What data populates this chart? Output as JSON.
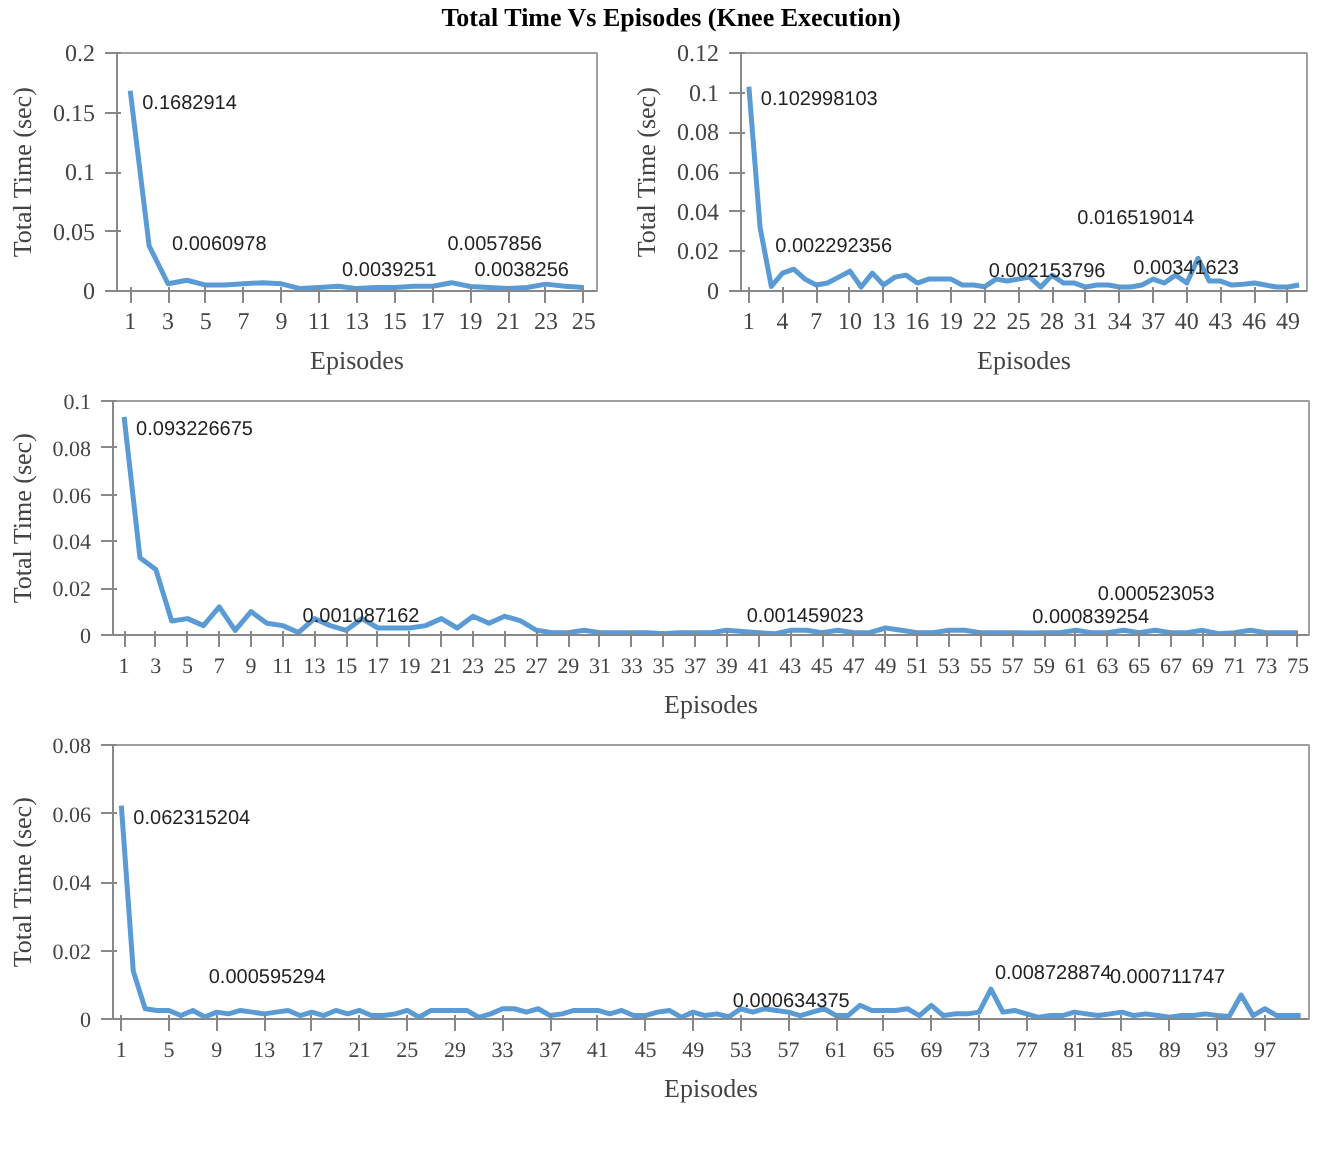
{
  "chart_data": [
    {
      "type": "line",
      "title": "Total Time Vs Episodes (Knee Execution)",
      "xlabel": "Episodes",
      "ylabel": "Total Time (sec)",
      "color": "#5b9bd5",
      "grid": false,
      "x": [
        1,
        2,
        3,
        4,
        5,
        6,
        7,
        8,
        9,
        10,
        11,
        12,
        13,
        14,
        15,
        16,
        17,
        18,
        19,
        20,
        21,
        22,
        23,
        24,
        25
      ],
      "values": [
        0.1682914,
        0.038,
        0.0060978,
        0.009,
        0.005,
        0.005,
        0.006,
        0.007,
        0.006,
        0.002,
        0.003,
        0.0039251,
        0.002,
        0.003,
        0.003,
        0.004,
        0.004,
        0.007,
        0.0038256,
        0.003,
        0.002,
        0.003,
        0.0057856,
        0.004,
        0.003
      ],
      "value_labels": [
        "0.1682914",
        null,
        "0.0060978",
        null,
        null,
        null,
        null,
        null,
        null,
        null,
        null,
        "0.0039251",
        null,
        null,
        null,
        null,
        null,
        null,
        "0.0038256",
        null,
        null,
        null,
        "0.0057856",
        null,
        null
      ],
      "xlim": [
        0.3,
        25.7
      ],
      "xticks": [
        1,
        3,
        5,
        7,
        9,
        11,
        13,
        15,
        17,
        19,
        21,
        23,
        25
      ],
      "ylim": [
        0,
        0.2
      ],
      "yticks": [
        0,
        0.05,
        0.1,
        0.15,
        0.2
      ]
    },
    {
      "type": "line",
      "xlabel": "Episodes",
      "ylabel": "Total Time (sec)",
      "color": "#5b9bd5",
      "grid": false,
      "x": [
        1,
        2,
        3,
        4,
        5,
        6,
        7,
        8,
        9,
        10,
        11,
        12,
        13,
        14,
        15,
        16,
        17,
        18,
        19,
        20,
        21,
        22,
        23,
        24,
        25,
        26,
        27,
        28,
        29,
        30,
        31,
        32,
        33,
        34,
        35,
        36,
        37,
        38,
        39,
        40,
        41,
        42,
        43,
        44,
        45,
        46,
        47,
        48,
        49,
        50
      ],
      "values": [
        0.102998103,
        0.032,
        0.002292356,
        0.009,
        0.011,
        0.006,
        0.003,
        0.004,
        0.007,
        0.01,
        0.002,
        0.009,
        0.003,
        0.007,
        0.008,
        0.004,
        0.006,
        0.006,
        0.006,
        0.003,
        0.003,
        0.002153796,
        0.006,
        0.005,
        0.006,
        0.007,
        0.002,
        0.008,
        0.004,
        0.004,
        0.002,
        0.003,
        0.003,
        0.002,
        0.002,
        0.003,
        0.006,
        0.004,
        0.008,
        0.004,
        0.016519014,
        0.005,
        0.005,
        0.003,
        0.00341623,
        0.004,
        0.003,
        0.002,
        0.002,
        0.003
      ],
      "value_labels": [
        "0.102998103",
        null,
        "0.002292356",
        null,
        null,
        null,
        null,
        null,
        null,
        null,
        null,
        null,
        null,
        null,
        null,
        null,
        null,
        null,
        null,
        null,
        null,
        "0.002153796",
        null,
        null,
        null,
        null,
        null,
        null,
        null,
        null,
        null,
        null,
        null,
        null,
        null,
        null,
        null,
        null,
        null,
        null,
        "0.016519014",
        null,
        null,
        null,
        "0.00341623",
        null,
        null,
        null,
        null,
        null
      ],
      "xlim": [
        0.3,
        50.7
      ],
      "xticks": [
        1,
        4,
        7,
        10,
        13,
        16,
        19,
        22,
        25,
        28,
        31,
        34,
        37,
        40,
        43,
        46,
        49
      ],
      "ylim": [
        0,
        0.12
      ],
      "yticks": [
        0,
        0.02,
        0.04,
        0.06,
        0.08,
        0.1,
        0.12
      ]
    },
    {
      "type": "line",
      "xlabel": "Episodes",
      "ylabel": "Total Time (sec)",
      "color": "#5b9bd5",
      "grid": false,
      "x": [
        1,
        2,
        3,
        4,
        5,
        6,
        7,
        8,
        9,
        10,
        11,
        12,
        13,
        14,
        15,
        16,
        17,
        18,
        19,
        20,
        21,
        22,
        23,
        24,
        25,
        26,
        27,
        28,
        29,
        30,
        31,
        32,
        33,
        34,
        35,
        36,
        37,
        38,
        39,
        40,
        41,
        42,
        43,
        44,
        45,
        46,
        47,
        48,
        49,
        50,
        51,
        52,
        53,
        54,
        55,
        56,
        57,
        58,
        59,
        60,
        61,
        62,
        63,
        64,
        65,
        66,
        67,
        68,
        69,
        70,
        71,
        72,
        73,
        74,
        75
      ],
      "values": [
        0.093226675,
        0.033,
        0.028,
        0.006,
        0.007,
        0.004,
        0.012,
        0.002,
        0.01,
        0.005,
        0.004,
        0.001087162,
        0.007,
        0.004,
        0.002,
        0.007,
        0.003,
        0.003,
        0.003,
        0.004,
        0.007,
        0.003,
        0.008,
        0.005,
        0.008,
        0.006,
        0.002,
        0.001,
        0.001,
        0.002,
        0.001,
        0.001,
        0.001,
        0.001,
        0.0005,
        0.001,
        0.001,
        0.001,
        0.002,
        0.001459023,
        0.001,
        0.0005,
        0.002,
        0.002,
        0.001,
        0.002,
        0.001,
        0.001,
        0.003,
        0.002,
        0.001,
        0.001,
        0.002,
        0.002,
        0.001,
        0.001,
        0.001,
        0.000839254,
        0.001,
        0.001,
        0.002,
        0.001,
        0.001,
        0.002,
        0.001,
        0.002,
        0.001,
        0.001,
        0.002,
        0.000523053,
        0.001,
        0.002,
        0.001,
        0.001,
        0.001
      ],
      "value_labels": [
        "0.093226675",
        null,
        null,
        null,
        null,
        null,
        null,
        null,
        null,
        null,
        null,
        "0.001087162",
        null,
        null,
        null,
        null,
        null,
        null,
        null,
        null,
        null,
        null,
        null,
        null,
        null,
        null,
        null,
        null,
        null,
        null,
        null,
        null,
        null,
        null,
        null,
        null,
        null,
        null,
        null,
        "0.001459023",
        null,
        null,
        null,
        null,
        null,
        null,
        null,
        null,
        null,
        null,
        null,
        null,
        null,
        null,
        null,
        null,
        null,
        "0.000839254",
        null,
        null,
        null,
        null,
        null,
        null,
        null,
        null,
        null,
        null,
        null,
        "0.000523053",
        null,
        null,
        null,
        null,
        null
      ],
      "xlim": [
        0.3,
        75.7
      ],
      "xticks": [
        1,
        3,
        5,
        7,
        9,
        11,
        13,
        15,
        17,
        19,
        21,
        23,
        25,
        27,
        29,
        31,
        33,
        35,
        37,
        39,
        41,
        43,
        45,
        47,
        49,
        51,
        53,
        55,
        57,
        59,
        61,
        63,
        65,
        67,
        69,
        71,
        73,
        75
      ],
      "ylim": [
        0,
        0.1
      ],
      "yticks": [
        0,
        0.02,
        0.04,
        0.06,
        0.08,
        0.1
      ]
    },
    {
      "type": "line",
      "xlabel": "Episodes",
      "ylabel": "Total Time (sec)",
      "color": "#5b9bd5",
      "grid": false,
      "x": [
        1,
        2,
        3,
        4,
        5,
        6,
        7,
        8,
        9,
        10,
        11,
        12,
        13,
        14,
        15,
        16,
        17,
        18,
        19,
        20,
        21,
        22,
        23,
        24,
        25,
        26,
        27,
        28,
        29,
        30,
        31,
        32,
        33,
        34,
        35,
        36,
        37,
        38,
        39,
        40,
        41,
        42,
        43,
        44,
        45,
        46,
        47,
        48,
        49,
        50,
        51,
        52,
        53,
        54,
        55,
        56,
        57,
        58,
        59,
        60,
        61,
        62,
        63,
        64,
        65,
        66,
        67,
        68,
        69,
        70,
        71,
        72,
        73,
        74,
        75,
        76,
        77,
        78,
        79,
        80,
        81,
        82,
        83,
        84,
        85,
        86,
        87,
        88,
        89,
        90,
        91,
        92,
        93,
        94,
        95,
        96,
        97,
        98,
        99,
        100
      ],
      "values": [
        0.062315204,
        0.014,
        0.003,
        0.0025,
        0.0025,
        0.001,
        0.0025,
        0.000595294,
        0.002,
        0.0015,
        0.0025,
        0.002,
        0.0015,
        0.002,
        0.0025,
        0.001,
        0.002,
        0.001,
        0.0025,
        0.0015,
        0.0025,
        0.001,
        0.001,
        0.0015,
        0.0025,
        0.0005,
        0.0025,
        0.0025,
        0.0025,
        0.0025,
        0.0005,
        0.0015,
        0.003,
        0.003,
        0.002,
        0.003,
        0.001,
        0.0015,
        0.0025,
        0.0025,
        0.0025,
        0.0015,
        0.0025,
        0.001,
        0.001,
        0.002,
        0.0025,
        0.0005,
        0.002,
        0.001,
        0.0015,
        0.000634375,
        0.003,
        0.002,
        0.003,
        0.0025,
        0.002,
        0.001,
        0.002,
        0.003,
        0.001,
        0.001,
        0.004,
        0.0025,
        0.0025,
        0.0025,
        0.003,
        0.001,
        0.004,
        0.001,
        0.0015,
        0.0015,
        0.002,
        0.008728874,
        0.002,
        0.0025,
        0.0015,
        0.0005,
        0.001,
        0.001,
        0.002,
        0.0015,
        0.001,
        0.0015,
        0.002,
        0.001,
        0.0015,
        0.001,
        0.0005,
        0.001,
        0.001,
        0.0015,
        0.001,
        0.000711747,
        0.007,
        0.001,
        0.003,
        0.001,
        0.001,
        0.001
      ],
      "value_labels": [
        "0.062315204",
        null,
        null,
        null,
        null,
        null,
        null,
        "0.000595294",
        null,
        null,
        null,
        null,
        null,
        null,
        null,
        null,
        null,
        null,
        null,
        null,
        null,
        null,
        null,
        null,
        null,
        null,
        null,
        null,
        null,
        null,
        null,
        null,
        null,
        null,
        null,
        null,
        null,
        null,
        null,
        null,
        null,
        null,
        null,
        null,
        null,
        null,
        null,
        null,
        null,
        null,
        null,
        "0.000634375",
        null,
        null,
        null,
        null,
        null,
        null,
        null,
        null,
        null,
        null,
        null,
        null,
        null,
        null,
        null,
        null,
        null,
        null,
        null,
        null,
        null,
        "0.008728874",
        null,
        null,
        null,
        null,
        null,
        null,
        null,
        null,
        null,
        null,
        null,
        null,
        null,
        null,
        null,
        null,
        null,
        null,
        null,
        "0.000711747",
        null,
        null,
        null,
        null,
        null,
        null
      ],
      "xlim": [
        0.3,
        100.7
      ],
      "xticks": [
        1,
        5,
        9,
        13,
        17,
        21,
        25,
        29,
        33,
        37,
        41,
        45,
        49,
        53,
        57,
        61,
        65,
        69,
        73,
        77,
        81,
        85,
        89,
        93,
        97
      ],
      "ylim": [
        0,
        0.08
      ],
      "yticks": [
        0,
        0.02,
        0.04,
        0.06,
        0.08
      ]
    }
  ]
}
